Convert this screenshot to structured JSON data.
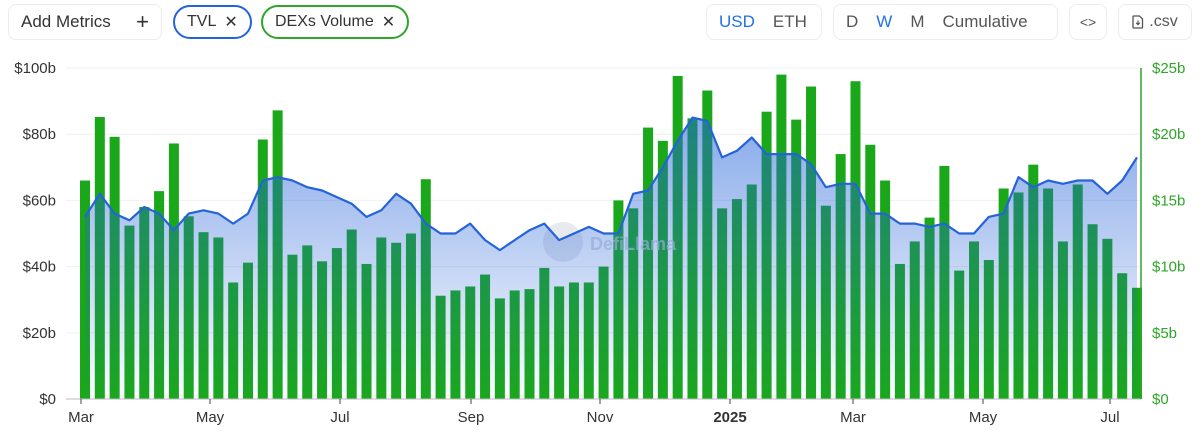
{
  "toolbar": {
    "add_metrics_label": "Add Metrics",
    "add_icon": "plus-icon",
    "metric_pills": [
      {
        "label": "TVL",
        "color": "#2563d9"
      },
      {
        "label": "DEXs Volume",
        "color": "#2fa52a"
      }
    ],
    "currency": {
      "options": [
        "USD",
        "ETH"
      ],
      "selected": "USD"
    },
    "granularity": {
      "options": [
        "D",
        "W",
        "M",
        "Cumulative"
      ],
      "selected": "W"
    },
    "embed_icon": "code-icon",
    "csv_label": ".csv",
    "csv_icon": "file-download-icon"
  },
  "watermark": "DefiLlama",
  "colors": {
    "tvl": "#2563d9",
    "volume": "#22b022",
    "volume_axis": "#2fa52a",
    "accent": "#2172e5"
  },
  "chart_data": {
    "type": "bar+line",
    "title": "",
    "x_tick_labels": [
      "Mar",
      "May",
      "Jul",
      "Sep",
      "Nov",
      "2025",
      "Mar",
      "May",
      "Jul"
    ],
    "left_axis": {
      "label": "TVL",
      "ticks": [
        "$0",
        "$20b",
        "$40b",
        "$60b",
        "$80b",
        "$100b"
      ],
      "ylim": [
        0,
        100
      ]
    },
    "right_axis": {
      "label": "DEXs Volume",
      "ticks": [
        "$0",
        "$5b",
        "$10b",
        "$15b",
        "$20b",
        "$25b"
      ],
      "ylim": [
        0,
        25
      ]
    },
    "grid": true,
    "legend": [
      "TVL",
      "DEXs Volume"
    ],
    "series": [
      {
        "name": "DEXs Volume",
        "type": "bar",
        "axis": "right",
        "unit": "$b",
        "values": [
          16.5,
          21.3,
          19.8,
          13.1,
          14.5,
          15.7,
          19.3,
          13.8,
          12.6,
          12.2,
          8.8,
          10.3,
          19.6,
          21.8,
          10.9,
          11.6,
          10.4,
          11.4,
          12.8,
          10.2,
          12.2,
          11.8,
          12.5,
          16.6,
          7.8,
          8.2,
          8.5,
          9.4,
          7.6,
          8.2,
          8.3,
          9.9,
          8.5,
          8.8,
          8.8,
          10.0,
          15.0,
          14.4,
          20.5,
          19.5,
          24.4,
          21.2,
          23.3,
          14.4,
          15.1,
          16.2,
          21.7,
          24.5,
          21.1,
          23.6,
          14.6,
          18.5,
          24.0,
          19.2,
          16.5,
          10.2,
          11.9,
          13.7,
          17.6,
          9.7,
          11.9,
          10.5,
          15.9,
          15.6,
          17.7,
          15.9,
          11.9,
          16.2,
          13.2,
          12.1,
          9.5,
          8.4
        ]
      },
      {
        "name": "TVL",
        "type": "area",
        "axis": "left",
        "unit": "$b",
        "values": [
          55,
          62,
          56,
          54,
          58,
          56,
          51,
          56,
          57,
          56,
          53,
          56,
          66,
          67,
          66,
          64,
          63,
          61,
          59,
          55,
          57,
          62,
          59,
          53,
          50,
          50,
          53,
          48,
          45,
          48,
          51,
          53,
          48,
          50,
          52,
          50,
          50,
          62,
          63,
          70,
          78,
          85,
          84,
          73,
          75,
          79,
          74,
          74,
          74,
          71,
          64,
          65,
          65,
          56,
          56,
          53,
          53,
          52,
          53,
          50,
          50,
          55,
          56,
          67,
          64,
          66,
          65,
          66,
          66,
          62,
          66,
          73
        ]
      }
    ]
  }
}
